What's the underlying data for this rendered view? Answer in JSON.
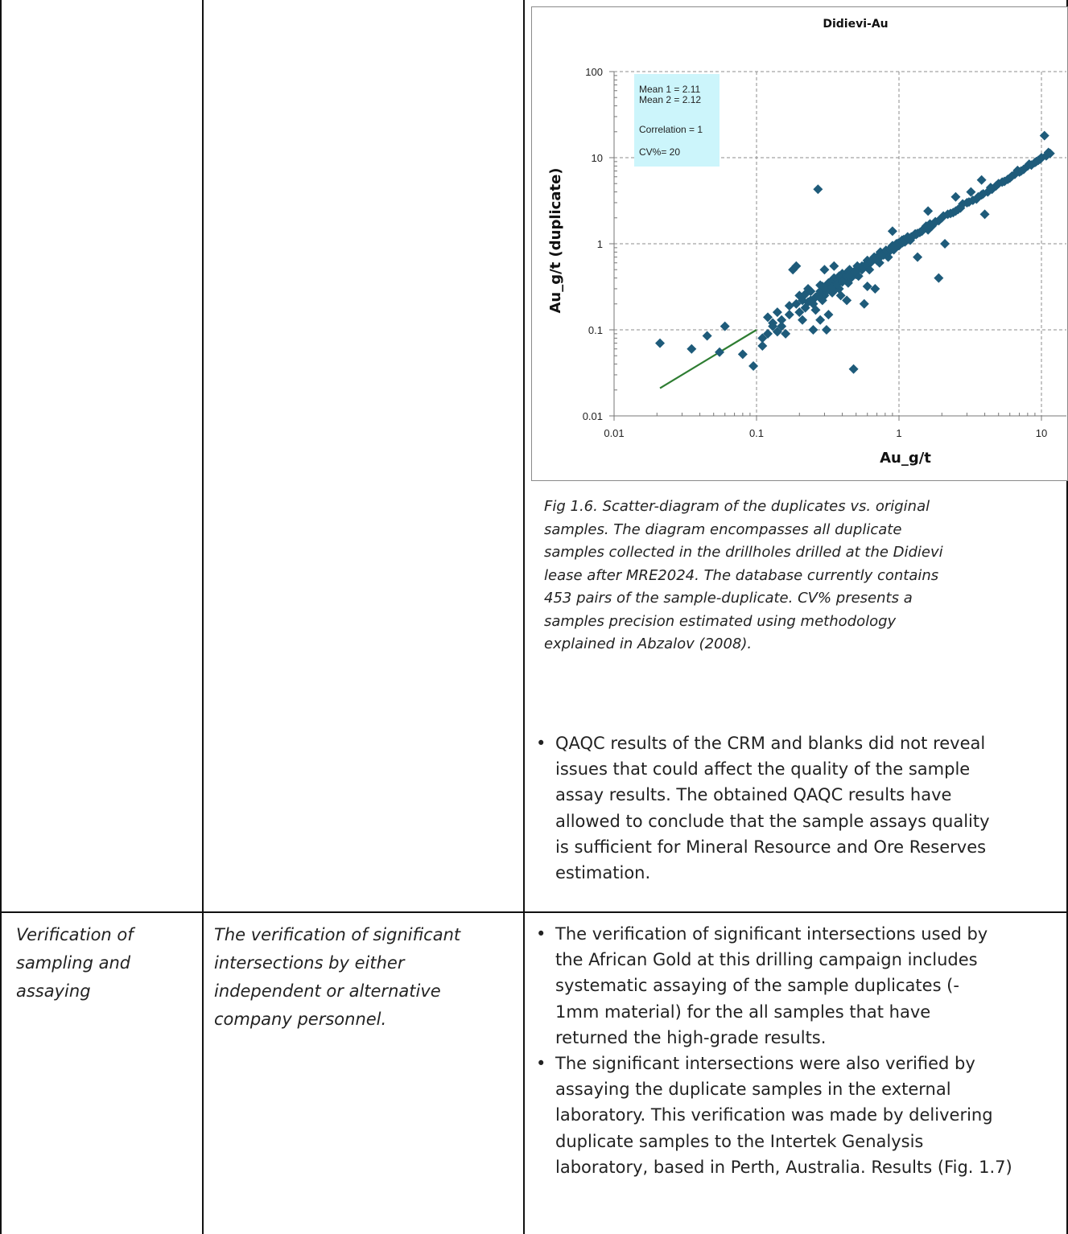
{
  "chart_data": {
    "type": "scatter",
    "title": "Didievi-Au",
    "xlabel": "Au_g/t",
    "ylabel": "Au_g/t (duplicate)",
    "x_scale": "log",
    "y_scale": "log",
    "xlim": [
      0.01,
      12
    ],
    "ylim": [
      0.01,
      100
    ],
    "x_ticks": [
      "0.01",
      "0.1",
      "1",
      "10"
    ],
    "y_ticks": [
      "0.01",
      "0.1",
      "1",
      "10",
      "100"
    ],
    "grid": true,
    "stats": {
      "mean1": "Mean 1 = 2.11",
      "mean2": "Mean 2 = 2.12",
      "correlation": "Correlation = 1",
      "cv": "CV%= 20"
    },
    "point_color": "#1e5b7a",
    "line_color": "#2e7d32",
    "regression_line": [
      [
        0.021,
        0.021
      ],
      [
        0.1,
        0.1
      ]
    ],
    "points": [
      [
        0.021,
        0.07
      ],
      [
        0.035,
        0.06
      ],
      [
        0.045,
        0.085
      ],
      [
        0.055,
        0.055
      ],
      [
        0.06,
        0.11
      ],
      [
        0.08,
        0.052
      ],
      [
        0.095,
        0.038
      ],
      [
        0.11,
        0.065
      ],
      [
        0.12,
        0.14
      ],
      [
        0.13,
        0.12
      ],
      [
        0.15,
        0.11
      ],
      [
        0.17,
        0.15
      ],
      [
        0.18,
        0.5
      ],
      [
        0.19,
        0.55
      ],
      [
        0.2,
        0.25
      ],
      [
        0.21,
        0.13
      ],
      [
        0.22,
        0.18
      ],
      [
        0.23,
        0.3
      ],
      [
        0.24,
        0.22
      ],
      [
        0.25,
        0.2
      ],
      [
        0.26,
        0.17
      ],
      [
        0.27,
        4.3
      ],
      [
        0.28,
        0.28
      ],
      [
        0.29,
        0.32
      ],
      [
        0.3,
        0.25
      ],
      [
        0.31,
        0.1
      ],
      [
        0.32,
        0.35
      ],
      [
        0.33,
        0.3
      ],
      [
        0.34,
        0.27
      ],
      [
        0.35,
        0.4
      ],
      [
        0.36,
        0.33
      ],
      [
        0.37,
        0.38
      ],
      [
        0.38,
        0.3
      ],
      [
        0.39,
        0.25
      ],
      [
        0.4,
        0.45
      ],
      [
        0.42,
        0.4
      ],
      [
        0.44,
        0.35
      ],
      [
        0.45,
        0.5
      ],
      [
        0.47,
        0.46
      ],
      [
        0.48,
        0.035
      ],
      [
        0.5,
        0.5
      ],
      [
        0.52,
        0.42
      ],
      [
        0.55,
        0.55
      ],
      [
        0.57,
        0.2
      ],
      [
        0.6,
        0.6
      ],
      [
        0.62,
        0.5
      ],
      [
        0.65,
        0.65
      ],
      [
        0.68,
        0.3
      ],
      [
        0.7,
        0.7
      ],
      [
        0.73,
        0.6
      ],
      [
        0.76,
        0.75
      ],
      [
        0.8,
        0.8
      ],
      [
        0.84,
        0.7
      ],
      [
        0.88,
        0.9
      ],
      [
        0.92,
        0.85
      ],
      [
        0.96,
        1.0
      ],
      [
        1.0,
        0.95
      ],
      [
        1.05,
        1.1
      ],
      [
        1.1,
        1.05
      ],
      [
        1.15,
        1.2
      ],
      [
        1.2,
        1.1
      ],
      [
        1.3,
        1.3
      ],
      [
        1.35,
        0.7
      ],
      [
        1.4,
        1.35
      ],
      [
        1.5,
        1.5
      ],
      [
        1.6,
        1.45
      ],
      [
        1.7,
        1.6
      ],
      [
        1.8,
        1.8
      ],
      [
        1.9,
        0.4
      ],
      [
        2.0,
        2.0
      ],
      [
        2.1,
        1.0
      ],
      [
        2.2,
        2.2
      ],
      [
        2.4,
        2.3
      ],
      [
        2.6,
        2.5
      ],
      [
        2.8,
        2.9
      ],
      [
        3.0,
        3.0
      ],
      [
        3.2,
        4.0
      ],
      [
        3.5,
        3.3
      ],
      [
        3.8,
        3.7
      ],
      [
        4.0,
        2.2
      ],
      [
        4.2,
        4.0
      ],
      [
        4.5,
        4.3
      ],
      [
        5.0,
        5.0
      ],
      [
        5.5,
        5.3
      ],
      [
        6.0,
        5.8
      ],
      [
        6.5,
        6.4
      ],
      [
        7.0,
        6.8
      ],
      [
        7.5,
        7.3
      ],
      [
        8.0,
        8.0
      ],
      [
        8.5,
        8.2
      ],
      [
        9.0,
        8.8
      ],
      [
        9.5,
        9.3
      ],
      [
        10.0,
        10.0
      ],
      [
        10.5,
        18.0
      ],
      [
        11.0,
        10.8
      ],
      [
        11.5,
        11.2
      ],
      [
        0.16,
        0.09
      ],
      [
        0.19,
        0.2
      ],
      [
        0.22,
        0.26
      ],
      [
        0.26,
        0.24
      ],
      [
        0.29,
        0.22
      ],
      [
        0.33,
        0.36
      ],
      [
        0.36,
        0.3
      ],
      [
        0.41,
        0.38
      ],
      [
        0.44,
        0.48
      ],
      [
        0.5,
        0.44
      ],
      [
        0.53,
        0.52
      ],
      [
        0.58,
        0.56
      ],
      [
        0.63,
        0.6
      ],
      [
        0.67,
        0.7
      ],
      [
        0.72,
        0.68
      ],
      [
        0.78,
        0.74
      ],
      [
        0.86,
        0.82
      ],
      [
        0.94,
        0.92
      ],
      [
        1.02,
        1.0
      ],
      [
        1.12,
        1.08
      ],
      [
        1.25,
        1.22
      ],
      [
        1.45,
        1.4
      ],
      [
        1.65,
        1.7
      ],
      [
        1.9,
        1.85
      ],
      [
        2.3,
        2.25
      ],
      [
        2.7,
        2.6
      ],
      [
        3.3,
        3.2
      ],
      [
        3.9,
        3.8
      ],
      [
        4.8,
        4.7
      ],
      [
        5.8,
        5.6
      ],
      [
        7.2,
        7.0
      ],
      [
        9.2,
        9.0
      ],
      [
        10.8,
        10.5
      ],
      [
        0.14,
        0.16
      ],
      [
        0.15,
        0.13
      ],
      [
        0.2,
        0.16
      ],
      [
        0.24,
        0.28
      ],
      [
        0.27,
        0.25
      ],
      [
        0.31,
        0.28
      ],
      [
        0.35,
        0.32
      ],
      [
        0.38,
        0.42
      ],
      [
        0.43,
        0.42
      ],
      [
        0.46,
        0.4
      ],
      [
        0.55,
        0.5
      ],
      [
        0.6,
        0.64
      ],
      [
        0.7,
        0.64
      ],
      [
        0.74,
        0.8
      ],
      [
        0.82,
        0.78
      ],
      [
        0.9,
        0.95
      ],
      [
        1.08,
        1.12
      ],
      [
        1.18,
        1.15
      ],
      [
        1.35,
        1.32
      ],
      [
        1.55,
        1.6
      ],
      [
        1.75,
        1.7
      ],
      [
        2.05,
        2.1
      ],
      [
        2.5,
        2.4
      ],
      [
        3.1,
        3.05
      ],
      [
        3.6,
        3.5
      ],
      [
        4.4,
        4.5
      ],
      [
        5.3,
        5.2
      ],
      [
        6.2,
        6.1
      ],
      [
        6.8,
        7.1
      ],
      [
        8.2,
        8.4
      ],
      [
        9.8,
        9.6
      ],
      [
        11.2,
        11.5
      ],
      [
        0.17,
        0.19
      ],
      [
        0.21,
        0.22
      ],
      [
        0.23,
        0.21
      ],
      [
        0.28,
        0.33
      ],
      [
        0.3,
        0.31
      ],
      [
        0.34,
        0.31
      ],
      [
        0.37,
        0.34
      ],
      [
        0.4,
        0.36
      ],
      [
        0.45,
        0.44
      ],
      [
        0.49,
        0.47
      ],
      [
        0.51,
        0.55
      ],
      [
        0.56,
        0.53
      ],
      [
        0.59,
        0.58
      ],
      [
        0.64,
        0.62
      ],
      [
        0.69,
        0.67
      ],
      [
        0.75,
        0.72
      ],
      [
        0.81,
        0.84
      ],
      [
        0.87,
        0.86
      ],
      [
        0.93,
        0.9
      ],
      [
        0.99,
        1.02
      ],
      [
        1.06,
        1.03
      ],
      [
        1.14,
        1.18
      ],
      [
        1.22,
        1.2
      ],
      [
        1.32,
        1.28
      ],
      [
        0.25,
        0.1
      ],
      [
        0.28,
        0.13
      ],
      [
        0.32,
        0.15
      ],
      [
        0.43,
        0.22
      ],
      [
        0.6,
        0.32
      ],
      [
        0.3,
        0.5
      ],
      [
        0.35,
        0.55
      ],
      [
        0.9,
        1.4
      ],
      [
        1.6,
        2.4
      ],
      [
        2.5,
        3.5
      ],
      [
        3.8,
        5.5
      ],
      [
        0.13,
        0.11
      ],
      [
        0.14,
        0.095
      ],
      [
        0.12,
        0.09
      ],
      [
        0.11,
        0.08
      ]
    ]
  },
  "caption": {
    "lines": [
      "Fig 1.6. Scatter-diagram of the duplicates vs. original",
      "samples. The diagram encompasses all duplicate",
      "samples collected in the drillholes drilled at the Didievi",
      "lease after MRE2024.  The database currently contains",
      "453 pairs of the sample-duplicate. CV% presents a",
      "samples precision estimated using methodology",
      "explained in Abzalov (2008)."
    ]
  },
  "qaqc_bullet": {
    "lines": [
      "QAQC results of the CRM and blanks did not reveal",
      "issues that could affect the quality of the sample",
      "assay results. The obtained QAQC results have",
      "allowed to conclude that the sample assays quality",
      "is sufficient for Mineral Resource and Ore Reserves",
      "estimation."
    ]
  },
  "row2": {
    "criteria_lines": [
      "Verification of",
      "sampling and",
      "assaying"
    ],
    "explanation_lines": [
      "The verification of significant",
      "intersections by either",
      "independent or alternative",
      "company personnel."
    ],
    "bullets": [
      [
        "The verification of significant intersections used by",
        "the African Gold at this drilling campaign includes",
        "systematic assaying of the sample duplicates (-",
        "1mm material) for the all samples that have",
        "returned the high-grade results."
      ],
      [
        "The significant intersections were also verified by",
        "assaying the duplicate samples in the external",
        "laboratory. This verification was made by delivering",
        "duplicate samples to the Intertek Genalysis",
        "laboratory, based in Perth, Australia. Results (Fig. 1.7)"
      ]
    ]
  }
}
